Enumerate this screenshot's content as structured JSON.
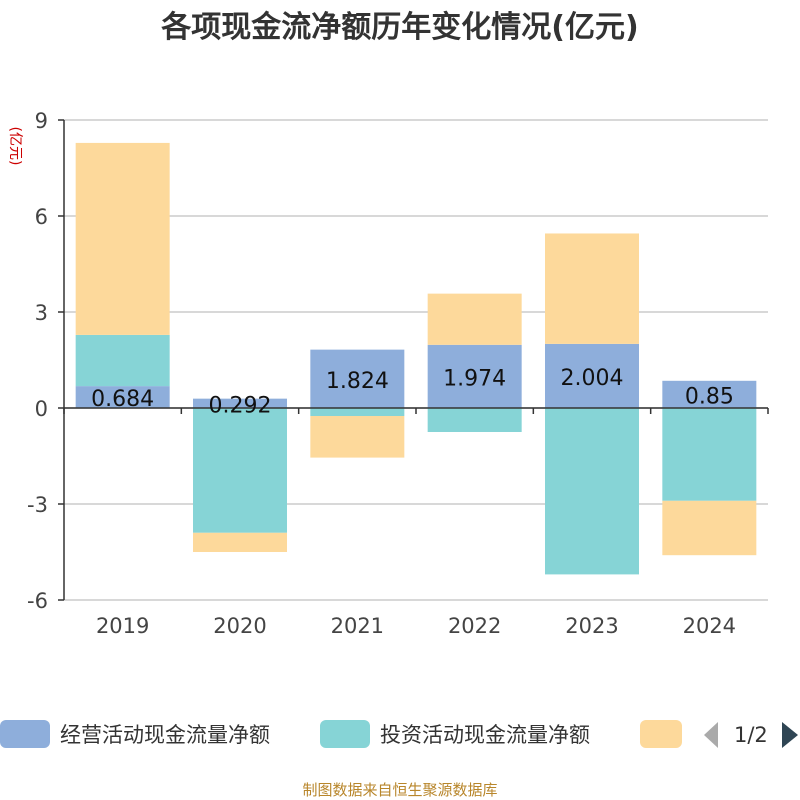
{
  "chart_data": {
    "type": "bar",
    "stacked": true,
    "title": "各项现金流净额历年变化情况(亿元)",
    "ylabel": "(亿元)",
    "xlabel": "",
    "categories": [
      "2019",
      "2020",
      "2021",
      "2022",
      "2023",
      "2024"
    ],
    "ylim": [
      -6,
      9
    ],
    "yticks": [
      9,
      6,
      3,
      0,
      -3,
      -6
    ],
    "grid": true,
    "series": [
      {
        "name": "经营活动现金流量净额",
        "color": "#8eaedb",
        "values": [
          0.684,
          0.292,
          1.824,
          1.974,
          2.004,
          0.85
        ],
        "labels": [
          "0.684",
          "0.292",
          "1.824",
          "1.974",
          "2.004",
          "0.85"
        ]
      },
      {
        "name": "投资活动现金流量净额",
        "color": "#86d4d6",
        "values": [
          1.6,
          -3.9,
          -0.25,
          -0.75,
          -5.2,
          -2.9
        ]
      },
      {
        "name": "",
        "color": "#fdd99b",
        "values": [
          6.0,
          -0.6,
          -1.3,
          1.6,
          3.45,
          -1.7
        ]
      }
    ],
    "legend": {
      "position": "bottom",
      "page": "1/2"
    },
    "source": "制图数据来自恒生聚源数据库"
  }
}
